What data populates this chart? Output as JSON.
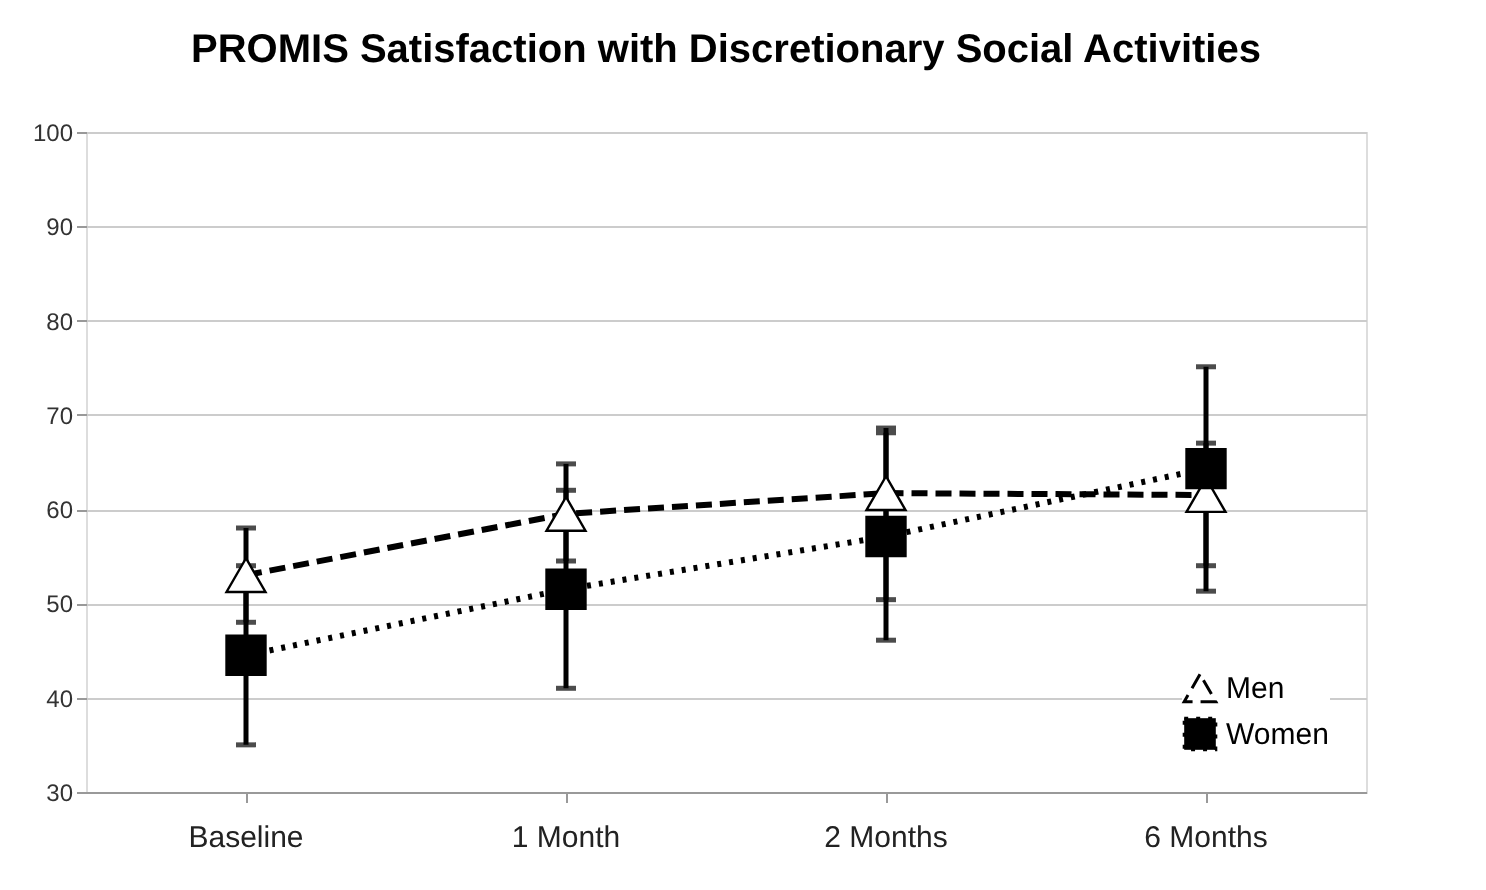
{
  "chart_data": {
    "type": "line",
    "title": "PROMIS Satisfaction with Discretionary Social Activities",
    "categories": [
      "Baseline",
      "1 Month",
      "2 Months",
      "6 Months"
    ],
    "series": [
      {
        "name": "Men",
        "color": "#000000",
        "marker": "triangle",
        "line_style": "dashed",
        "values": [
          53,
          59.5,
          61.7,
          61.5
        ],
        "errors": [
          [
            48,
            58
          ],
          [
            54.5,
            64.8
          ],
          [
            50.4,
            68.6
          ],
          [
            54,
            67
          ]
        ]
      },
      {
        "name": "Women",
        "color": "#000000",
        "marker": "square",
        "line_style": "dotted",
        "values": [
          44.5,
          51.5,
          57.1,
          64.3
        ],
        "errors": [
          [
            35,
            54
          ],
          [
            41,
            62
          ],
          [
            46.1,
            68.1
          ],
          [
            51.3,
            75.1
          ]
        ]
      }
    ],
    "ylim": [
      30,
      100
    ],
    "yticks": [
      30,
      40,
      50,
      60,
      70,
      80,
      90,
      100
    ],
    "grid": "y",
    "legend": "bottom right"
  }
}
